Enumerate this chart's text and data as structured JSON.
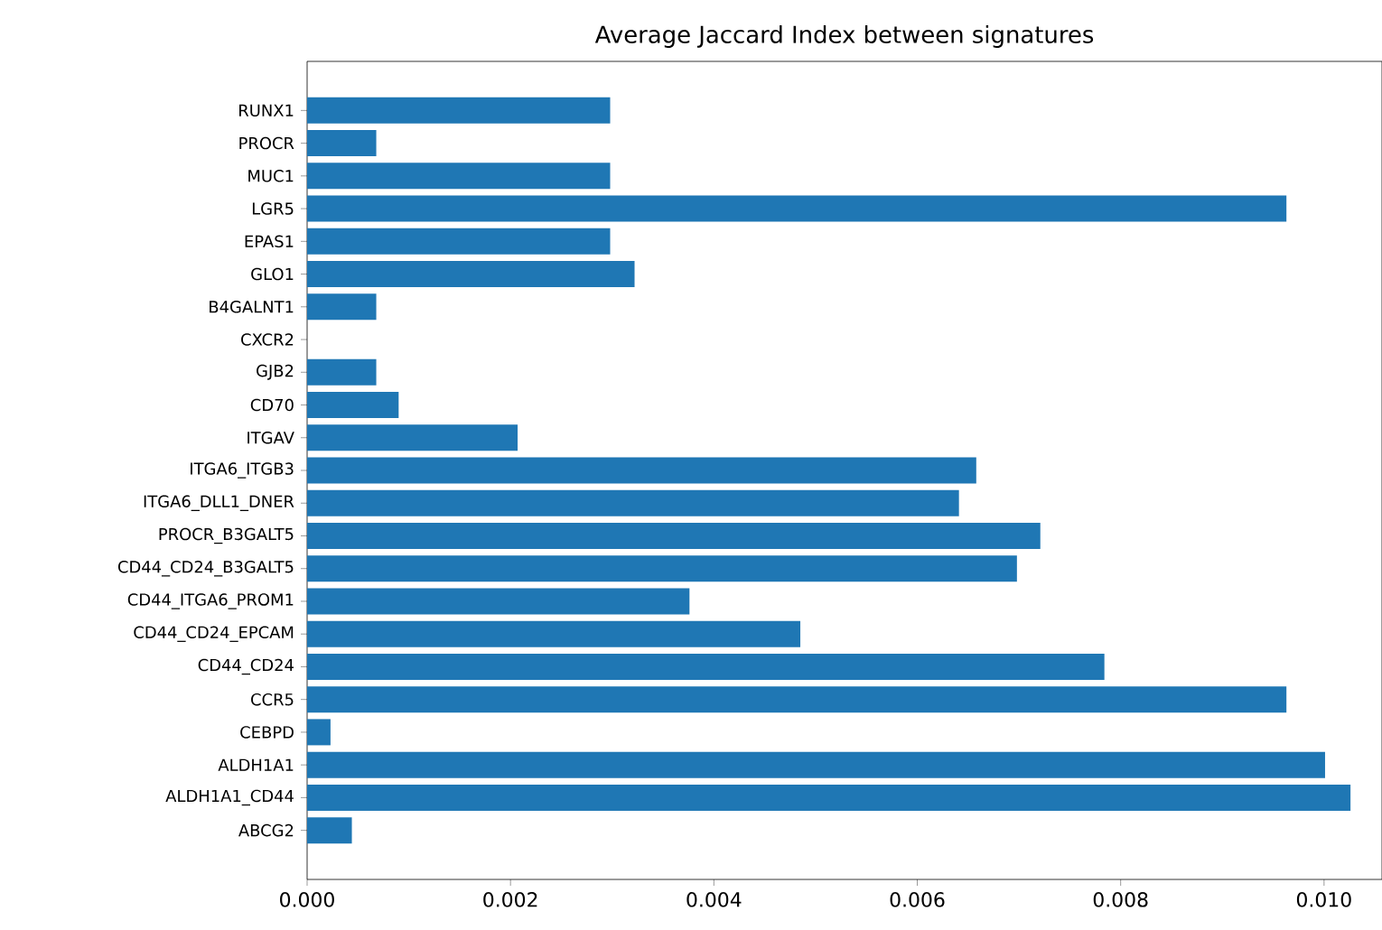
{
  "chart_data": {
    "type": "bar",
    "orientation": "horizontal",
    "title": "Average Jaccard Index between signatures",
    "categories": [
      "RUNX1",
      "PROCR",
      "MUC1",
      "LGR5",
      "EPAS1",
      "GLO1",
      "B4GALNT1",
      "CXCR2",
      "GJB2",
      "CD70",
      "ITGAV",
      "ITGA6_ITGB3",
      "ITGA6_DLL1_DNER",
      "PROCR_B3GALT5",
      "CD44_CD24_B3GALT5",
      "CD44_ITGA6_PROM1",
      "CD44_CD24_EPCAM",
      "CD44_CD24",
      "CCR5",
      "CEBPD",
      "ALDH1A1",
      "ALDH1A1_CD44",
      "ABCG2"
    ],
    "values": [
      0.00298,
      0.00068,
      0.00298,
      0.00963,
      0.00298,
      0.00322,
      0.00068,
      0,
      0.00068,
      0.0009,
      0.00207,
      0.00658,
      0.00641,
      0.00721,
      0.00698,
      0.00376,
      0.00485,
      0.00784,
      0.00963,
      0.00023,
      0.01001,
      0.01026,
      0.00044
    ],
    "color": "#1f77b4",
    "xlim": [
      0,
      0.01057
    ],
    "xticks": [
      {
        "value": 0,
        "label": "0.000"
      },
      {
        "value": 0.002,
        "label": "0.002"
      },
      {
        "value": 0.004,
        "label": "0.004"
      },
      {
        "value": 0.006,
        "label": "0.006"
      },
      {
        "value": 0.008,
        "label": "0.008"
      },
      {
        "value": 0.01,
        "label": "0.010"
      }
    ]
  }
}
